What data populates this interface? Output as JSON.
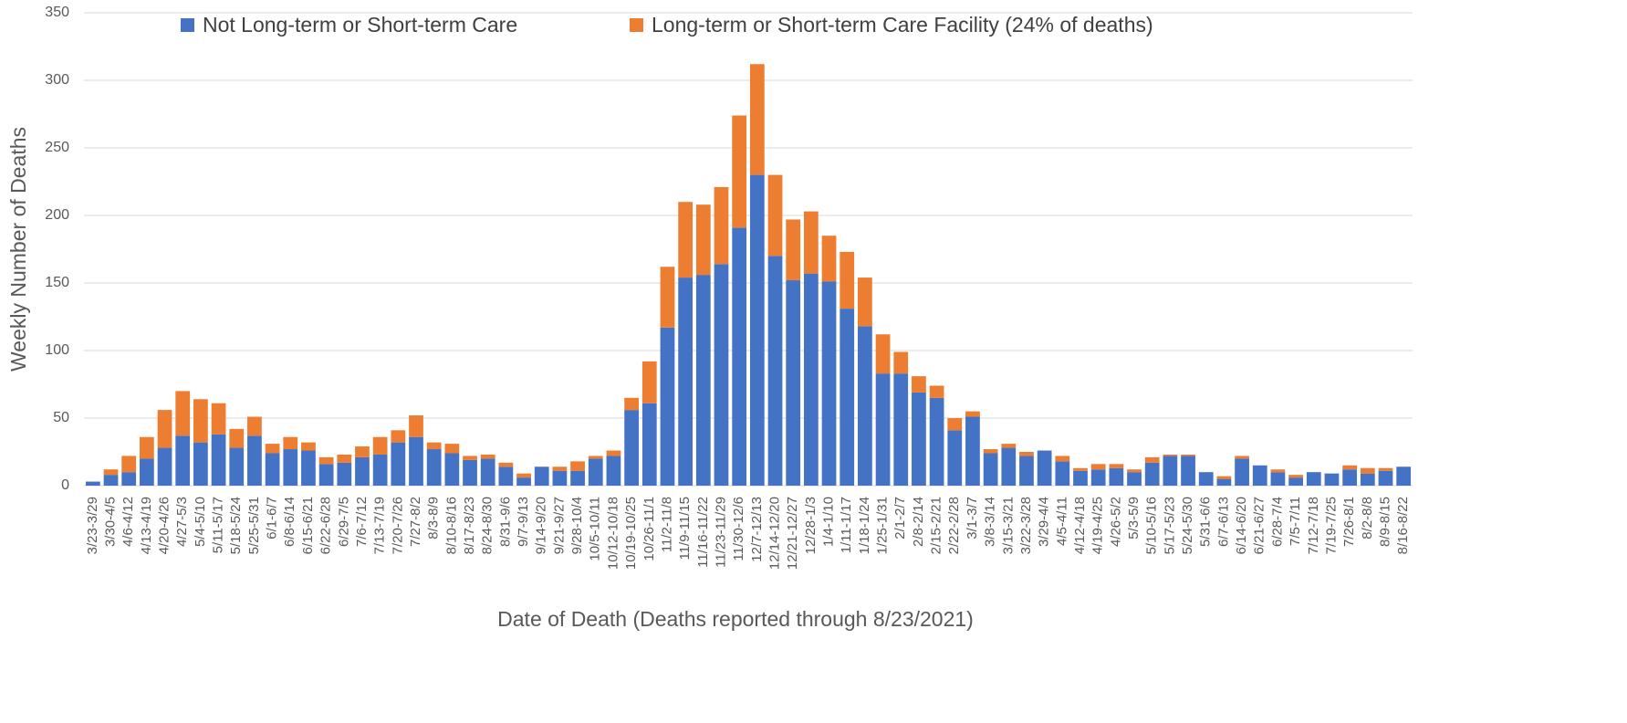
{
  "chart_data": {
    "type": "stacked_bar",
    "x_label": "Date of Death (Deaths reported through 8/23/2021)",
    "y_label": "Weekly Number of Deaths",
    "categories": [
      "3/23-3/29",
      "3/30-4/5",
      "4/6-4/12",
      "4/13-4/19",
      "4/20-4/26",
      "4/27-5/3",
      "5/4-5/10",
      "5/11-5/17",
      "5/18-5/24",
      "5/25-5/31",
      "6/1-6/7",
      "6/8-6/14",
      "6/15-6/21",
      "6/22-6/28",
      "6/29-7/5",
      "7/6-7/12",
      "7/13-7/19",
      "7/20-7/26",
      "7/27-8/2",
      "8/3-8/9",
      "8/10-8/16",
      "8/17-8/23",
      "8/24-8/30",
      "8/31-9/6",
      "9/7-9/13",
      "9/14-9/20",
      "9/21-9/27",
      "9/28-10/4",
      "10/5-10/11",
      "10/12-10/18",
      "10/19-10/25",
      "10/26-11/1",
      "11/2-11/8",
      "11/9-11/15",
      "11/16-11/22",
      "11/23-11/29",
      "11/30-12/6",
      "12/7-12/13",
      "12/14-12/20",
      "12/21-12/27",
      "12/28-1/3",
      "1/4-1/10",
      "1/11-1/17",
      "1/18-1/24",
      "1/25-1/31",
      "2/1-2/7",
      "2/8-2/14",
      "2/15-2/21",
      "2/22-2/28",
      "3/1-3/7",
      "3/8-3/14",
      "3/15-3/21",
      "3/22-3/28",
      "3/29-4/4",
      "4/5-4/11",
      "4/12-4/18",
      "4/19-4/25",
      "4/26-5/2",
      "5/3-5/9",
      "5/10-5/16",
      "5/17-5/23",
      "5/24-5/30",
      "5/31-6/6",
      "6/7-6/13",
      "6/14-6/20",
      "6/21-6/27",
      "6/28-7/4",
      "7/5-7/11",
      "7/12-7/18",
      "7/19-7/25",
      "7/26-8/1",
      "8/2-8/8",
      "8/9-8/15",
      "8/16-8/22"
    ],
    "series": [
      {
        "name": "Not Long-term or Short-term Care",
        "color": "#4472c4",
        "values": [
          3,
          8,
          10,
          20,
          28,
          37,
          32,
          38,
          28,
          37,
          24,
          27,
          26,
          16,
          17,
          21,
          23,
          32,
          36,
          27,
          24,
          19,
          20,
          14,
          6,
          14,
          11,
          11,
          20,
          22,
          56,
          61,
          117,
          154,
          156,
          164,
          191,
          230,
          170,
          152,
          157,
          151,
          131,
          118,
          83,
          83,
          69,
          65,
          41,
          51,
          24,
          28,
          22,
          26,
          18,
          11,
          12,
          13,
          10,
          17,
          22,
          22,
          10,
          5,
          20,
          15,
          10,
          6,
          10,
          9,
          12,
          9,
          11,
          14
        ]
      },
      {
        "name": "Long-term or Short-term Care Facility (24% of deaths)",
        "color": "#ed7d31",
        "values": [
          0,
          4,
          12,
          16,
          28,
          33,
          32,
          23,
          14,
          14,
          7,
          9,
          6,
          5,
          6,
          8,
          13,
          9,
          16,
          5,
          7,
          3,
          3,
          3,
          3,
          0,
          3,
          7,
          2,
          4,
          9,
          31,
          45,
          56,
          52,
          57,
          83,
          82,
          60,
          45,
          46,
          34,
          42,
          36,
          29,
          16,
          12,
          9,
          9,
          4,
          3,
          3,
          3,
          0,
          4,
          2,
          4,
          3,
          2,
          4,
          1,
          1,
          0,
          2,
          2,
          0,
          2,
          2,
          0,
          0,
          3,
          4,
          2,
          0
        ]
      }
    ],
    "ylim": [
      0,
      350
    ],
    "yticks": [
      0,
      50,
      100,
      150,
      200,
      250,
      300,
      350
    ],
    "grid": true,
    "legend": "top"
  }
}
